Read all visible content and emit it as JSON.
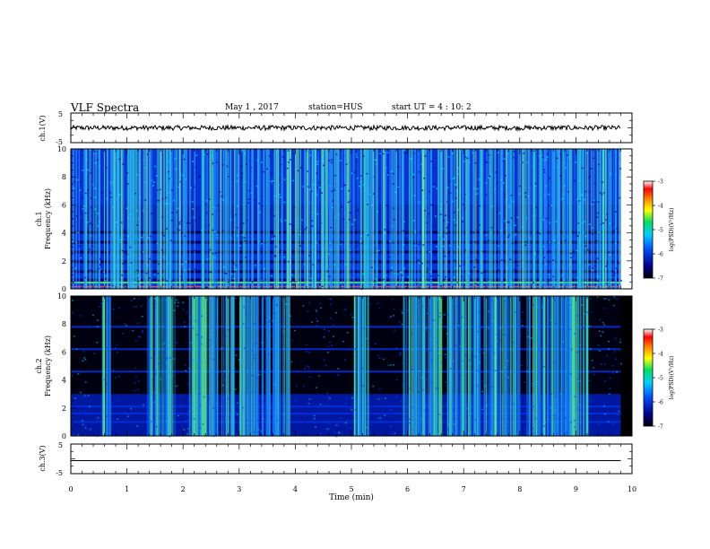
{
  "header": {
    "title": "VLF Spectra",
    "date": "May 1 , 2017",
    "station": "station=HUS",
    "start": "start  UT =   4 : 10: 2"
  },
  "chart_data": [
    {
      "type": "line",
      "panel": "ch1-waveform",
      "ylabel": "ch.1(V)",
      "ylim": [
        -5,
        5
      ],
      "yticks": [
        "5",
        "-5"
      ],
      "xlim": [
        0,
        10
      ],
      "series": [
        {
          "x": [
            0,
            9.8
          ],
          "values": [
            0,
            0
          ]
        }
      ]
    },
    {
      "type": "heatmap",
      "panel": "ch1-spectrogram",
      "ylabel": [
        "ch.1",
        "Frequency (kHz)"
      ],
      "ylim": [
        0,
        10
      ],
      "yticks": [
        "0",
        "2",
        "4",
        "6",
        "8",
        "10"
      ],
      "xlim": [
        0,
        10
      ],
      "colorbar": {
        "label": "log(PSD)(V²/Hz)",
        "range": [
          -7,
          -3
        ],
        "ticks": [
          "-3",
          "-4",
          "-5",
          "-6",
          "-7"
        ]
      },
      "dense_bands_khz": [
        0.6,
        1.2,
        1.9,
        2.6,
        3.3,
        4.0
      ]
    },
    {
      "type": "heatmap",
      "panel": "ch2-spectrogram",
      "ylabel": [
        "ch.2",
        "Frequency (kHz)"
      ],
      "ylim": [
        0,
        10
      ],
      "yticks": [
        "0",
        "2",
        "4",
        "6",
        "8",
        "10"
      ],
      "xlim": [
        0,
        10
      ],
      "colorbar": {
        "label": "log(PSD)(V²/Hz)",
        "range": [
          -7,
          -3
        ],
        "ticks": [
          "-3",
          "-4",
          "-5",
          "-6",
          "-7"
        ]
      }
    },
    {
      "type": "line",
      "panel": "ch3-waveform",
      "ylabel": "ch.3(V)",
      "ylim": [
        -5,
        5
      ],
      "yticks": [
        "5",
        "-5"
      ],
      "xlim": [
        0,
        10
      ],
      "xlabel": "Time (min)",
      "xticks": [
        "0",
        "1",
        "2",
        "3",
        "4",
        "5",
        "6",
        "7",
        "8",
        "9",
        "10"
      ],
      "series": [
        {
          "x": [
            0,
            9.8
          ],
          "values": [
            0,
            0
          ]
        }
      ]
    }
  ],
  "colors": {
    "background": "#ffffff",
    "axes": "#000000",
    "spec_low": "#000020",
    "spec_mid": "#0040ff",
    "spec_high": "#30d8c0"
  }
}
